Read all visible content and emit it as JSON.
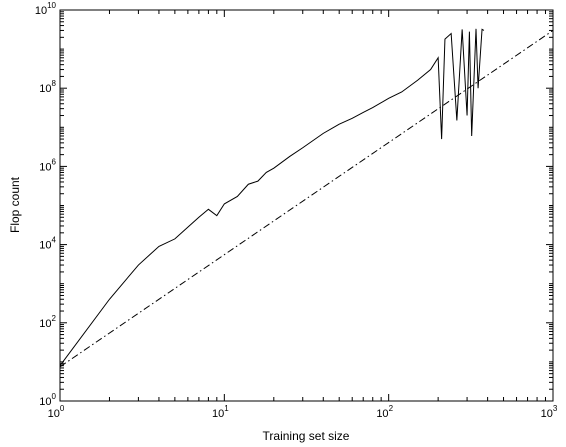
{
  "chart_data": {
    "type": "line",
    "xscale": "log",
    "yscale": "log",
    "xlabel": "Training set size",
    "ylabel": "Flop count",
    "xlim": [
      1,
      1000
    ],
    "ylim": [
      1,
      10000000000
    ],
    "grid": false,
    "x_ticks": [
      {
        "base": "10",
        "exp": "0",
        "value": 1
      },
      {
        "base": "10",
        "exp": "1",
        "value": 10
      },
      {
        "base": "10",
        "exp": "2",
        "value": 100
      },
      {
        "base": "10",
        "exp": "3",
        "value": 1000
      }
    ],
    "y_ticks": [
      {
        "base": "10",
        "exp": "0",
        "value": 1
      },
      {
        "base": "10",
        "exp": "2",
        "value": 100
      },
      {
        "base": "10",
        "exp": "4",
        "value": 10000
      },
      {
        "base": "10",
        "exp": "6",
        "value": 1000000
      },
      {
        "base": "10",
        "exp": "8",
        "value": 100000000
      },
      {
        "base": "10",
        "exp": "10",
        "value": 10000000000
      }
    ],
    "series": [
      {
        "style": "solid",
        "points": [
          [
            1,
            8
          ],
          [
            2,
            400
          ],
          [
            3,
            3000
          ],
          [
            4,
            9000
          ],
          [
            5,
            14000
          ],
          [
            6,
            28000
          ],
          [
            7,
            50000
          ],
          [
            8,
            80000
          ],
          [
            9,
            55000
          ],
          [
            10,
            110000
          ],
          [
            12,
            170000
          ],
          [
            14,
            350000
          ],
          [
            16,
            420000
          ],
          [
            18,
            700000
          ],
          [
            20,
            900000
          ],
          [
            25,
            1800000
          ],
          [
            30,
            3000000
          ],
          [
            40,
            7000000
          ],
          [
            50,
            12000000
          ],
          [
            60,
            17000000
          ],
          [
            70,
            24000000
          ],
          [
            80,
            32000000
          ],
          [
            100,
            55000000
          ],
          [
            120,
            80000000
          ],
          [
            150,
            160000000
          ],
          [
            180,
            300000000
          ],
          [
            200,
            600000000
          ],
          [
            210,
            5000000
          ],
          [
            220,
            1800000000
          ],
          [
            240,
            2500000000
          ],
          [
            260,
            15000000
          ],
          [
            280,
            3200000000
          ],
          [
            300,
            20000000
          ],
          [
            310,
            2800000000
          ],
          [
            320,
            6000000
          ],
          [
            340,
            3300000000
          ],
          [
            350,
            100000000
          ],
          [
            370,
            3200000000
          ],
          [
            380,
            3000000000
          ]
        ]
      },
      {
        "style": "dash-dot",
        "points": [
          [
            1,
            7.5
          ],
          [
            1000,
            3000000000
          ]
        ]
      }
    ]
  }
}
